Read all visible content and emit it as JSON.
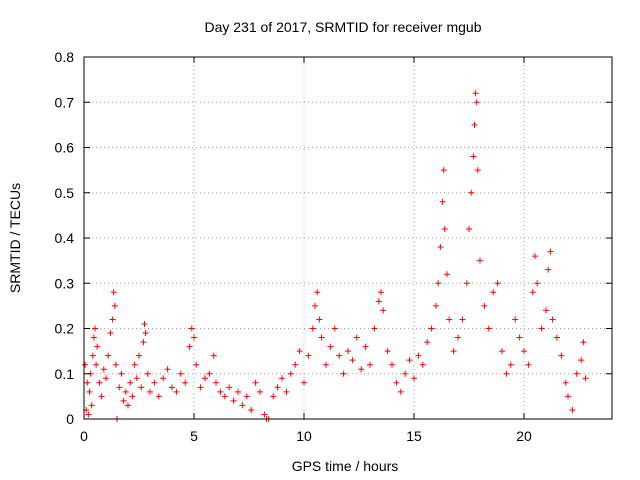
{
  "chart_data": {
    "type": "scatter",
    "title": "Day 231 of 2017, SRMTID for receiver mgub",
    "xlabel": "GPS time / hours",
    "ylabel": "SRMTID / TECUs",
    "xlim": [
      0,
      24
    ],
    "ylim": [
      0,
      0.8
    ],
    "xticks": [
      0,
      5,
      10,
      15,
      20
    ],
    "xtick_labels": [
      "0",
      "5",
      "10",
      "15",
      "20"
    ],
    "yticks": [
      0,
      0.1,
      0.2,
      0.3,
      0.4,
      0.5,
      0.6,
      0.7,
      0.8
    ],
    "ytick_labels": [
      "0",
      "0.1",
      "0.2",
      "0.3",
      "0.4",
      "0.5",
      "0.6",
      "0.7",
      "0.8"
    ],
    "grid": true,
    "marker": "plus",
    "color": "#ff0000",
    "series": [
      {
        "name": "SRMTID",
        "points": [
          [
            0.05,
            0.12
          ],
          [
            0.1,
            0.02
          ],
          [
            0.15,
            0.08
          ],
          [
            0.2,
            0.01
          ],
          [
            0.25,
            0.06
          ],
          [
            0.3,
            0.1
          ],
          [
            0.35,
            0.03
          ],
          [
            0.4,
            0.14
          ],
          [
            0.45,
            0.18
          ],
          [
            0.5,
            0.2
          ],
          [
            0.55,
            0.12
          ],
          [
            0.6,
            0.16
          ],
          [
            0.7,
            0.08
          ],
          [
            0.8,
            0.05
          ],
          [
            0.9,
            0.11
          ],
          [
            1.0,
            0.09
          ],
          [
            1.1,
            0.14
          ],
          [
            1.2,
            0.19
          ],
          [
            1.3,
            0.22
          ],
          [
            1.35,
            0.28
          ],
          [
            1.4,
            0.25
          ],
          [
            1.45,
            0.12
          ],
          [
            1.5,
            0.0
          ],
          [
            1.6,
            0.07
          ],
          [
            1.7,
            0.1
          ],
          [
            1.8,
            0.04
          ],
          [
            1.9,
            0.06
          ],
          [
            2.0,
            0.03
          ],
          [
            2.1,
            0.08
          ],
          [
            2.2,
            0.05
          ],
          [
            2.3,
            0.12
          ],
          [
            2.4,
            0.09
          ],
          [
            2.5,
            0.14
          ],
          [
            2.6,
            0.07
          ],
          [
            2.7,
            0.17
          ],
          [
            2.75,
            0.21
          ],
          [
            2.8,
            0.19
          ],
          [
            2.9,
            0.1
          ],
          [
            3.0,
            0.06
          ],
          [
            3.2,
            0.08
          ],
          [
            3.4,
            0.05
          ],
          [
            3.6,
            0.09
          ],
          [
            3.8,
            0.11
          ],
          [
            4.0,
            0.07
          ],
          [
            4.2,
            0.06
          ],
          [
            4.4,
            0.1
          ],
          [
            4.6,
            0.08
          ],
          [
            4.8,
            0.16
          ],
          [
            4.9,
            0.2
          ],
          [
            5.0,
            0.18
          ],
          [
            5.1,
            0.12
          ],
          [
            5.3,
            0.07
          ],
          [
            5.5,
            0.09
          ],
          [
            5.7,
            0.1
          ],
          [
            5.9,
            0.14
          ],
          [
            6.0,
            0.08
          ],
          [
            6.2,
            0.06
          ],
          [
            6.4,
            0.05
          ],
          [
            6.6,
            0.07
          ],
          [
            6.8,
            0.04
          ],
          [
            7.0,
            0.06
          ],
          [
            7.2,
            0.03
          ],
          [
            7.4,
            0.05
          ],
          [
            7.6,
            0.02
          ],
          [
            7.8,
            0.08
          ],
          [
            8.0,
            0.06
          ],
          [
            8.2,
            0.01
          ],
          [
            8.3,
            0.0
          ],
          [
            8.4,
            0.0
          ],
          [
            8.6,
            0.05
          ],
          [
            8.8,
            0.07
          ],
          [
            9.0,
            0.09
          ],
          [
            9.2,
            0.06
          ],
          [
            9.4,
            0.1
          ],
          [
            9.6,
            0.12
          ],
          [
            9.8,
            0.15
          ],
          [
            10.0,
            0.08
          ],
          [
            10.2,
            0.14
          ],
          [
            10.4,
            0.2
          ],
          [
            10.5,
            0.25
          ],
          [
            10.6,
            0.28
          ],
          [
            10.7,
            0.22
          ],
          [
            10.8,
            0.18
          ],
          [
            11.0,
            0.12
          ],
          [
            11.2,
            0.16
          ],
          [
            11.4,
            0.2
          ],
          [
            11.6,
            0.14
          ],
          [
            11.8,
            0.1
          ],
          [
            12.0,
            0.15
          ],
          [
            12.2,
            0.13
          ],
          [
            12.4,
            0.18
          ],
          [
            12.6,
            0.11
          ],
          [
            12.8,
            0.16
          ],
          [
            13.0,
            0.12
          ],
          [
            13.2,
            0.2
          ],
          [
            13.4,
            0.26
          ],
          [
            13.5,
            0.28
          ],
          [
            13.6,
            0.24
          ],
          [
            13.8,
            0.15
          ],
          [
            14.0,
            0.12
          ],
          [
            14.2,
            0.08
          ],
          [
            14.4,
            0.06
          ],
          [
            14.6,
            0.1
          ],
          [
            14.8,
            0.13
          ],
          [
            15.0,
            0.09
          ],
          [
            15.2,
            0.14
          ],
          [
            15.4,
            0.12
          ],
          [
            15.6,
            0.17
          ],
          [
            15.8,
            0.2
          ],
          [
            16.0,
            0.25
          ],
          [
            16.1,
            0.3
          ],
          [
            16.2,
            0.38
          ],
          [
            16.3,
            0.48
          ],
          [
            16.35,
            0.55
          ],
          [
            16.4,
            0.42
          ],
          [
            16.5,
            0.32
          ],
          [
            16.6,
            0.22
          ],
          [
            16.8,
            0.15
          ],
          [
            17.0,
            0.18
          ],
          [
            17.2,
            0.22
          ],
          [
            17.4,
            0.3
          ],
          [
            17.5,
            0.42
          ],
          [
            17.6,
            0.5
          ],
          [
            17.7,
            0.58
          ],
          [
            17.75,
            0.65
          ],
          [
            17.8,
            0.72
          ],
          [
            17.85,
            0.7
          ],
          [
            17.9,
            0.55
          ],
          [
            18.0,
            0.35
          ],
          [
            18.2,
            0.25
          ],
          [
            18.4,
            0.2
          ],
          [
            18.6,
            0.28
          ],
          [
            18.8,
            0.3
          ],
          [
            19.0,
            0.15
          ],
          [
            19.2,
            0.1
          ],
          [
            19.4,
            0.12
          ],
          [
            19.6,
            0.22
          ],
          [
            19.8,
            0.18
          ],
          [
            20.0,
            0.15
          ],
          [
            20.2,
            0.12
          ],
          [
            20.4,
            0.28
          ],
          [
            20.5,
            0.36
          ],
          [
            20.6,
            0.3
          ],
          [
            20.8,
            0.2
          ],
          [
            21.0,
            0.24
          ],
          [
            21.1,
            0.33
          ],
          [
            21.2,
            0.37
          ],
          [
            21.3,
            0.22
          ],
          [
            21.5,
            0.18
          ],
          [
            21.7,
            0.14
          ],
          [
            21.9,
            0.08
          ],
          [
            22.0,
            0.05
          ],
          [
            22.2,
            0.02
          ],
          [
            22.4,
            0.1
          ],
          [
            22.6,
            0.13
          ],
          [
            22.7,
            0.17
          ],
          [
            22.8,
            0.09
          ]
        ]
      }
    ]
  }
}
